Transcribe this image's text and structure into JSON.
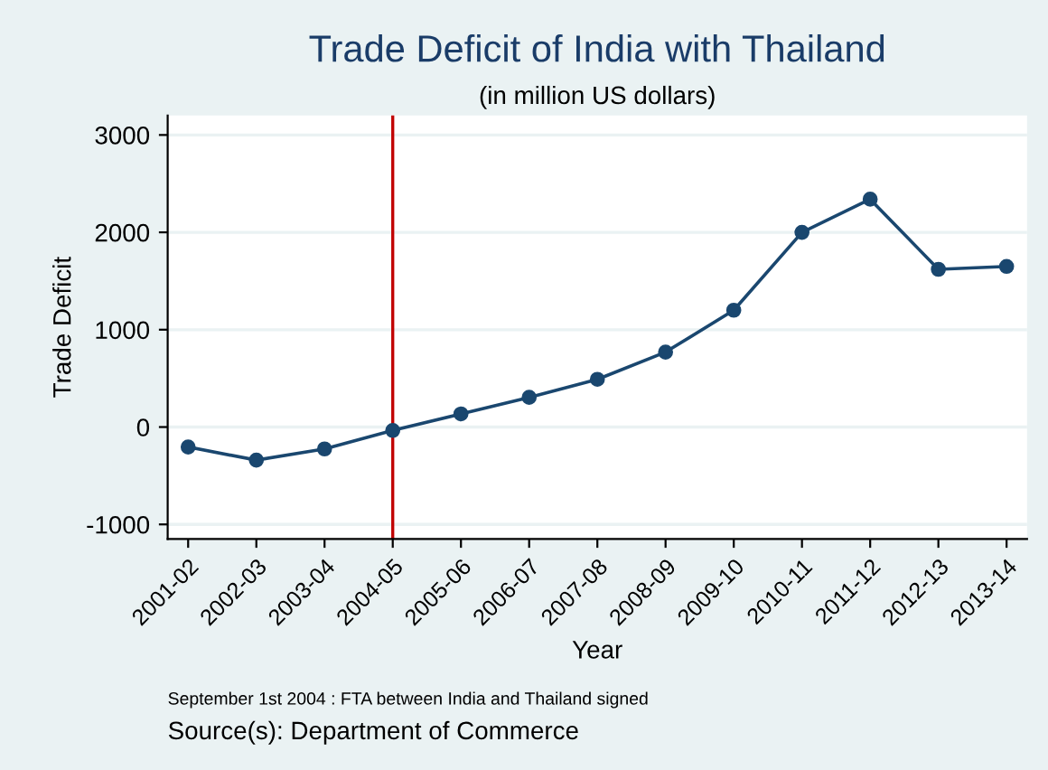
{
  "chart_data": {
    "type": "line",
    "title": "Trade Deficit of India with Thailand",
    "subtitle": "(in million US dollars)",
    "xlabel": "Year",
    "ylabel": "Trade Deficit",
    "categories": [
      "2001-02",
      "2002-03",
      "2003-04",
      "2004-05",
      "2005-06",
      "2006-07",
      "2007-08",
      "2008-09",
      "2009-10",
      "2010-11",
      "2011-12",
      "2012-13",
      "2013-14"
    ],
    "series": [
      {
        "color": "#1a476f",
        "values": [
          -205,
          -340,
          -225,
          -35,
          135,
          305,
          490,
          770,
          1200,
          2000,
          2340,
          1620,
          1650
        ]
      }
    ],
    "ylim": [
      -1150,
      3200
    ],
    "yticks": [
      -1000,
      0,
      1000,
      2000,
      3000
    ],
    "grid": "y",
    "marker": "circle",
    "line_style": "solid",
    "ref_lines": [
      {
        "axis": "x",
        "value": "2004-05",
        "color": "#c10000"
      }
    ],
    "annotations": [
      "September 1st 2004 : FTA between India and Thailand signed",
      "Source(s): Department of Commerce"
    ]
  }
}
